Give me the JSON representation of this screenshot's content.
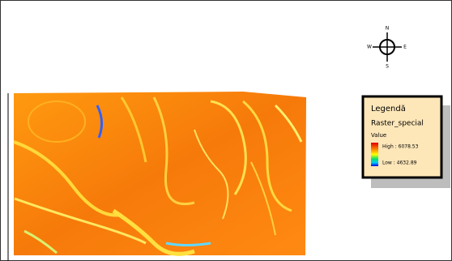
{
  "compass": {
    "north": "N",
    "south": "S",
    "west": "W",
    "east": "E"
  },
  "legend": {
    "title": "Legendă",
    "layer": "Raster_special",
    "field": "Value",
    "high": "High : 6078.53",
    "low": "Low : 4632.89"
  }
}
